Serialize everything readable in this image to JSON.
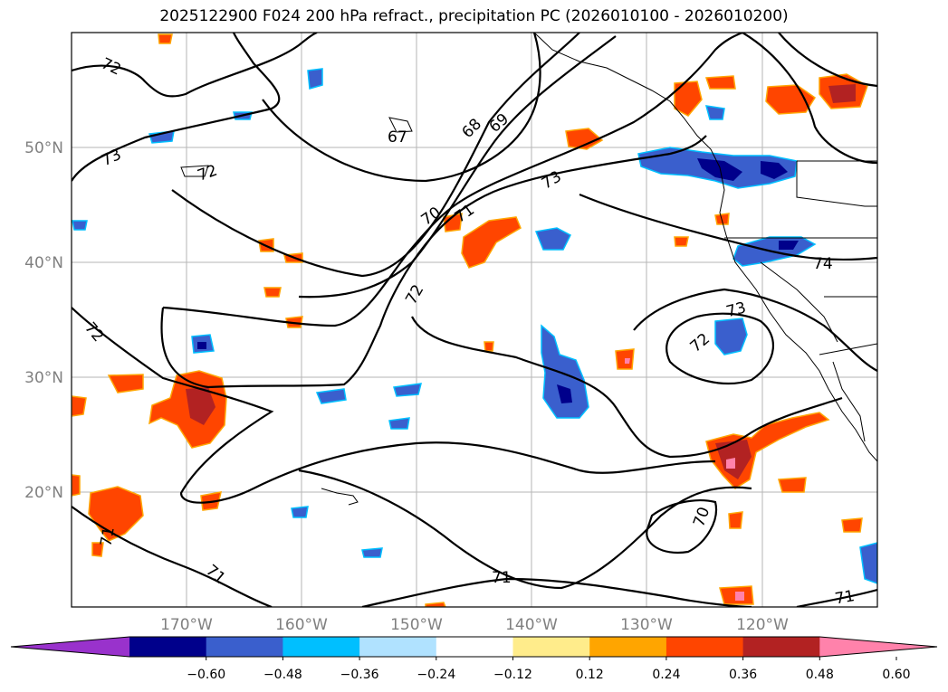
{
  "title": "2025122900 F024 200 hPa refract., precipitation PC (2026010100 - 2026010200)",
  "lat_labels": [
    "50°N",
    "40°N",
    "30°N",
    "20°N"
  ],
  "lon_labels": [
    "170°W",
    "160°W",
    "150°W",
    "140°W",
    "130°W",
    "120°W"
  ],
  "contour_labels": [
    "72",
    "73",
    "72",
    "67",
    "68",
    "69",
    "70",
    "71",
    "72",
    "73",
    "72",
    "73",
    "74",
    "72",
    "70",
    "71",
    "71",
    "71",
    "71"
  ],
  "colorbar": {
    "ticks": [
      "−0.60",
      "−0.48",
      "−0.36",
      "−0.24",
      "−0.12",
      "0.12",
      "0.24",
      "0.36",
      "0.48",
      "0.60"
    ],
    "colors": [
      "#9932CC",
      "#00008B",
      "#3A5FCD",
      "#00BFFF",
      "#B0E2FF",
      "#FFFFFF",
      "#FFEC8B",
      "#FFA500",
      "#FF4500",
      "#B22222",
      "#FF82AB"
    ]
  },
  "chart_data": {
    "type": "map",
    "field_contours": "200 hPa refractivity",
    "field_shaded": "precipitation PC",
    "contour_levels_labeled": [
      67,
      68,
      69,
      70,
      71,
      72,
      73,
      74
    ],
    "shading_levels": [
      -0.6,
      -0.48,
      -0.36,
      -0.24,
      -0.12,
      0.12,
      0.24,
      0.36,
      0.48,
      0.6
    ],
    "lon_range": [
      -180,
      -110
    ],
    "lat_range": [
      10,
      60
    ]
  }
}
